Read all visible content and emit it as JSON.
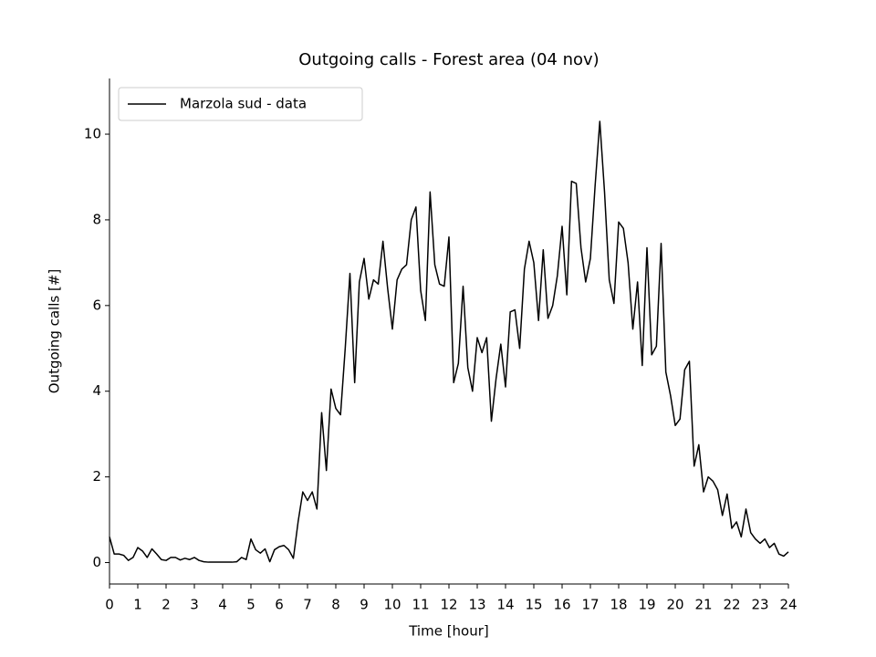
{
  "chart_data": {
    "type": "line",
    "title": "Outgoing calls - Forest area (04 nov)",
    "xlabel": "Time [hour]",
    "ylabel": "Outgoing calls [#]",
    "x": [
      0,
      0.167,
      0.333,
      0.5,
      0.667,
      0.833,
      1,
      1.167,
      1.333,
      1.5,
      1.667,
      1.833,
      2,
      2.167,
      2.333,
      2.5,
      2.667,
      2.833,
      3,
      3.167,
      3.333,
      3.5,
      3.667,
      3.833,
      4,
      4.167,
      4.333,
      4.5,
      4.667,
      4.833,
      5,
      5.167,
      5.333,
      5.5,
      5.667,
      5.833,
      6,
      6.167,
      6.333,
      6.5,
      6.667,
      6.833,
      7,
      7.167,
      7.333,
      7.5,
      7.667,
      7.833,
      8,
      8.167,
      8.333,
      8.5,
      8.667,
      8.833,
      9,
      9.167,
      9.333,
      9.5,
      9.667,
      9.833,
      10,
      10.167,
      10.333,
      10.5,
      10.667,
      10.833,
      11,
      11.167,
      11.333,
      11.5,
      11.667,
      11.833,
      12,
      12.167,
      12.333,
      12.5,
      12.667,
      12.833,
      13,
      13.167,
      13.333,
      13.5,
      13.667,
      13.833,
      14,
      14.167,
      14.333,
      14.5,
      14.667,
      14.833,
      15,
      15.167,
      15.333,
      15.5,
      15.667,
      15.833,
      16,
      16.167,
      16.333,
      16.5,
      16.667,
      16.833,
      17,
      17.167,
      17.333,
      17.5,
      17.667,
      17.833,
      18,
      18.167,
      18.333,
      18.5,
      18.667,
      18.833,
      19,
      19.167,
      19.333,
      19.5,
      19.667,
      19.833,
      20,
      20.167,
      20.333,
      20.5,
      20.667,
      20.833,
      21,
      21.167,
      21.333,
      21.5,
      21.667,
      21.833,
      22,
      22.167,
      22.333,
      22.5,
      22.667,
      22.833,
      23,
      23.167,
      23.333,
      23.5,
      23.667,
      23.833,
      24
    ],
    "series": [
      {
        "name": "Marzola sud - data",
        "color": "#000000",
        "values": [
          0.6,
          0.2,
          0.2,
          0.17,
          0.05,
          0.12,
          0.35,
          0.27,
          0.12,
          0.32,
          0.2,
          0.07,
          0.05,
          0.12,
          0.12,
          0.06,
          0.1,
          0.07,
          0.12,
          0.05,
          0.02,
          0.01,
          0.01,
          0.01,
          0.01,
          0.01,
          0.01,
          0.02,
          0.12,
          0.07,
          0.55,
          0.3,
          0.22,
          0.32,
          0.02,
          0.3,
          0.37,
          0.4,
          0.3,
          0.1,
          0.95,
          1.65,
          1.45,
          1.65,
          1.25,
          3.5,
          2.15,
          4.05,
          3.6,
          3.45,
          5.0,
          6.75,
          4.2,
          6.55,
          7.1,
          6.15,
          6.6,
          6.5,
          7.5,
          6.4,
          5.45,
          6.6,
          6.85,
          6.95,
          8.0,
          8.3,
          6.35,
          5.65,
          8.65,
          6.95,
          6.5,
          6.45,
          7.6,
          4.2,
          4.65,
          6.45,
          4.55,
          4.0,
          5.25,
          4.9,
          5.25,
          3.3,
          4.3,
          5.1,
          4.1,
          5.85,
          5.9,
          5.0,
          6.85,
          7.5,
          7.0,
          5.65,
          7.3,
          5.7,
          6.0,
          6.7,
          7.85,
          6.25,
          8.9,
          8.85,
          7.35,
          6.55,
          7.1,
          8.8,
          10.3,
          8.65,
          6.6,
          6.05,
          7.95,
          7.8,
          7.0,
          5.45,
          6.55,
          4.6,
          7.35,
          4.85,
          5.05,
          7.45,
          4.45,
          3.9,
          3.2,
          3.35,
          4.5,
          4.7,
          2.25,
          2.75,
          1.65,
          2.0,
          1.9,
          1.7,
          1.1,
          1.6,
          0.8,
          0.95,
          0.6,
          1.25,
          0.7,
          0.55,
          0.45,
          0.55,
          0.35,
          0.45,
          0.2,
          0.15,
          0.25
        ]
      }
    ],
    "xlim": [
      0,
      24
    ],
    "xticks": [
      0,
      1,
      2,
      3,
      4,
      5,
      6,
      7,
      8,
      9,
      10,
      11,
      12,
      13,
      14,
      15,
      16,
      17,
      18,
      19,
      20,
      21,
      22,
      23,
      24
    ],
    "ylim": [
      -0.5,
      11.3
    ],
    "yticks": [
      0,
      2,
      4,
      6,
      8,
      10
    ],
    "grid": false,
    "legend": "upper left"
  }
}
